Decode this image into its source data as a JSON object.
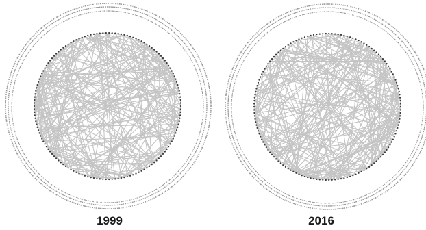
{
  "panels": [
    {
      "label": "1999"
    },
    {
      "label": "2016"
    }
  ],
  "colors": {
    "edge": "#c4c4c4",
    "node": "#3a3a3a",
    "outer_text": "#9a9a9a",
    "label": "#1a1a1a"
  }
}
